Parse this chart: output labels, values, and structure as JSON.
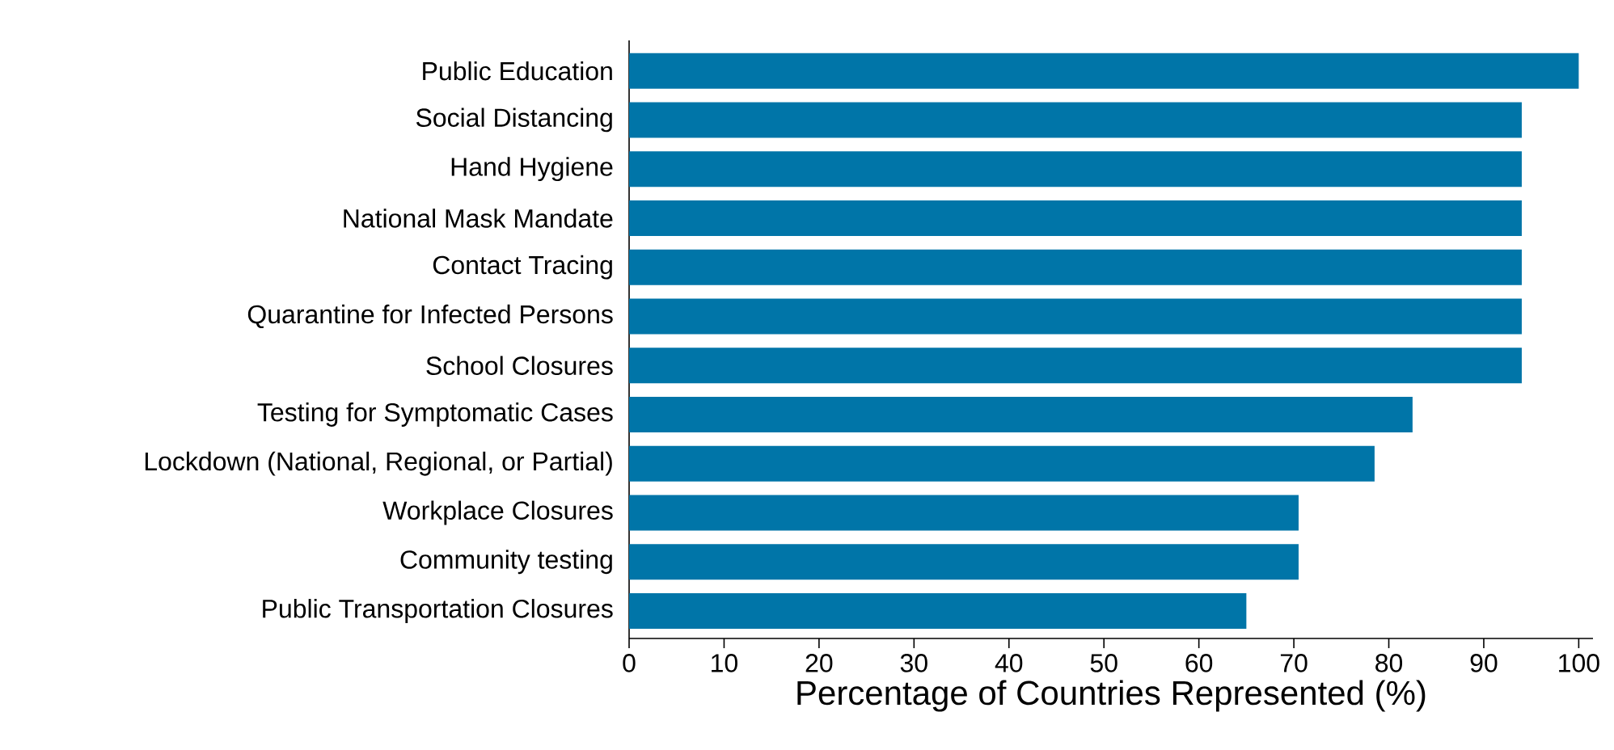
{
  "chart_data": {
    "type": "bar",
    "orientation": "horizontal",
    "xlabel": "Percentage of Countries Represented (%)",
    "categories": [
      "Public Education",
      "Social Distancing",
      "Hand Hygiene",
      "National Mask Mandate",
      "Contact Tracing",
      "Quarantine for Infected Persons",
      "School Closures",
      "Testing for Symptomatic Cases",
      "Lockdown (National, Regional, or Partial)",
      "Workplace Closures",
      "Community testing",
      "Public Transportation Closures"
    ],
    "values": [
      100,
      94,
      94,
      94,
      94,
      94,
      94,
      82.5,
      78.5,
      70.5,
      70.5,
      65
    ],
    "color": "#0075a8",
    "xlim": [
      0,
      101.5
    ],
    "xticks": [
      0,
      10,
      20,
      30,
      40,
      50,
      60,
      70,
      80,
      90,
      100
    ]
  }
}
